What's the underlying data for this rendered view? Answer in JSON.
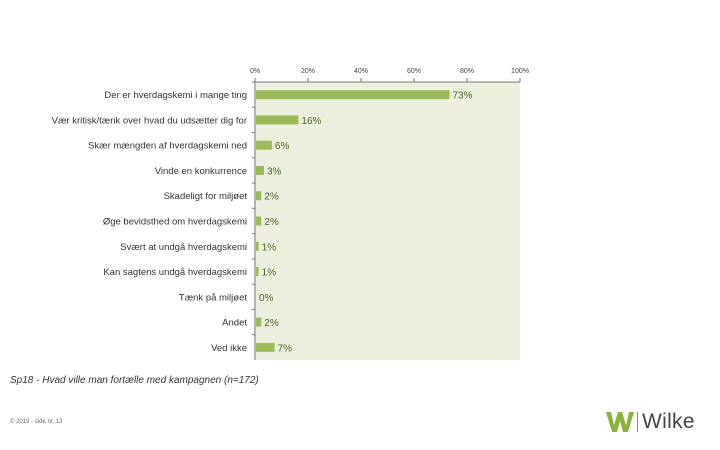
{
  "chart_data": {
    "type": "bar",
    "orientation": "horizontal",
    "categories": [
      "Der er hverdagskemi i mange ting",
      "Vær kritisk/tænk over hvad du udsætter dig for",
      "Skær mængden af hverdagskemi ned",
      "Vinde en konkurrence",
      "Skadeligt for miljøet",
      "Øge bevidsthed om hverdagskemi",
      "Svært at undgå hverdagskemi",
      "Kan sagtens undgå hverdagskemi",
      "Tænk på miljøet",
      "Andet",
      "Ved ikke"
    ],
    "values": [
      73,
      16,
      6,
      3,
      2,
      2,
      1,
      1,
      0,
      2,
      7
    ],
    "data_labels": [
      "73%",
      "16%",
      "6%",
      "3%",
      "2%",
      "2%",
      "1%",
      "1%",
      "0%",
      "2%",
      "7%"
    ],
    "x_ticks": [
      "0%",
      "20%",
      "40%",
      "60%",
      "80%",
      "100%"
    ],
    "xlim": [
      0,
      100
    ],
    "title": "",
    "xlabel": "",
    "ylabel": "",
    "bar_color": "#9bbb59",
    "plot_background": "#ebf1de",
    "label_color": "#4f6228",
    "grid": false
  },
  "caption": "Sp18 - Hvad ville man fortælle med kampagnen (n=172)",
  "footer": "© 2019 - side nr. 13",
  "logo": {
    "text": "Wilke",
    "icon": "w-mark-icon",
    "color": "#8cb43c"
  }
}
